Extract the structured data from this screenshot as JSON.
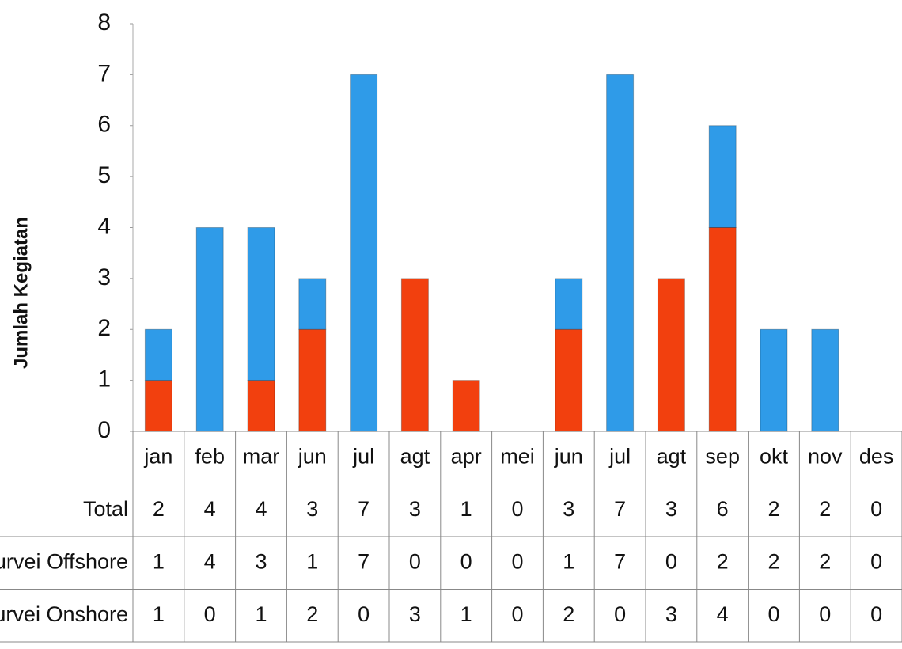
{
  "chart_data": {
    "type": "stacked-bar",
    "y_label": "Jumlah Kegiatan",
    "categories": [
      "jan",
      "feb",
      "mar",
      "jun",
      "jul",
      "agt",
      "apr",
      "mei",
      "jun",
      "jul",
      "agt",
      "sep",
      "okt",
      "nov",
      "des"
    ],
    "total": {
      "name": "Total",
      "values": [
        2,
        4,
        4,
        3,
        7,
        3,
        1,
        0,
        3,
        7,
        3,
        6,
        2,
        2,
        0
      ]
    },
    "series": [
      {
        "name": "Survei Offshore",
        "color": "#2f9be8",
        "values": [
          1,
          4,
          3,
          1,
          7,
          0,
          0,
          0,
          1,
          7,
          0,
          2,
          2,
          2,
          0
        ]
      },
      {
        "name": "Survei Onshore",
        "color": "#f2400e",
        "values": [
          1,
          0,
          1,
          2,
          0,
          3,
          1,
          0,
          2,
          0,
          3,
          4,
          0,
          0,
          0
        ]
      }
    ],
    "stack_order": [
      1,
      0
    ],
    "ylim": [
      0,
      8
    ],
    "yticks": [
      0,
      1,
      2,
      3,
      4,
      5,
      6,
      7,
      8
    ]
  }
}
